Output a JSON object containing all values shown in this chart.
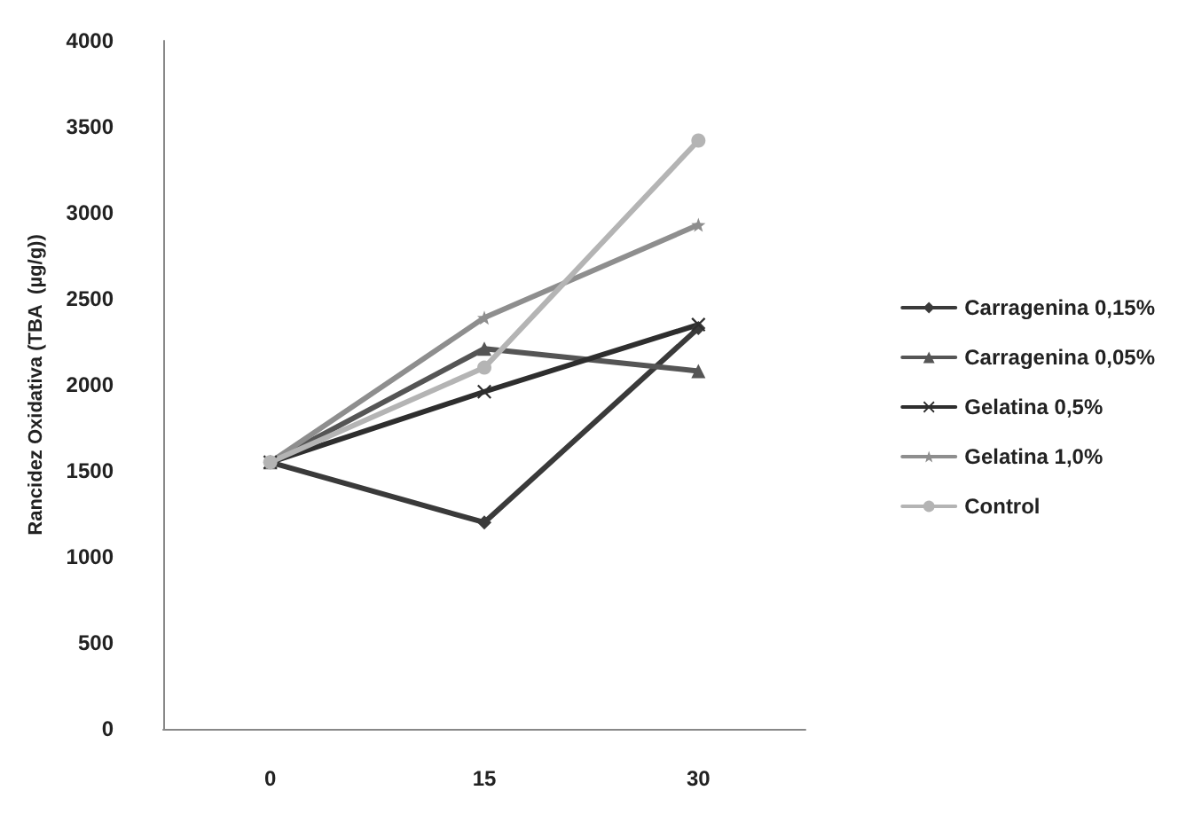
{
  "chart_data": {
    "type": "line",
    "ylabel": "Rancidez Oxidativa (TBA  (µg/g))",
    "categories": [
      "0",
      "15",
      "30"
    ],
    "series": [
      {
        "name": "Carragenina 0,15%",
        "color": "#3a3a3a",
        "marker": "diamond",
        "values": [
          1550,
          1200,
          2330
        ]
      },
      {
        "name": "Carragenina 0,05%",
        "color": "#555555",
        "marker": "triangle",
        "values": [
          1550,
          2210,
          2080
        ]
      },
      {
        "name": "Gelatina 0,5%",
        "color": "#2e2e2e",
        "marker": "cross",
        "values": [
          1550,
          1960,
          2350
        ]
      },
      {
        "name": "Gelatina 1,0%",
        "color": "#8e8e8e",
        "marker": "star",
        "values": [
          1550,
          2390,
          2930
        ]
      },
      {
        "name": "Control",
        "color": "#b4b4b4",
        "marker": "circle",
        "values": [
          1550,
          2100,
          3420
        ]
      }
    ],
    "ylim": [
      0,
      4000
    ],
    "yticks": [
      0,
      500,
      1000,
      1500,
      2000,
      2500,
      3000,
      3500,
      4000
    ],
    "grid": false,
    "legend": "right",
    "line_style": "solid"
  }
}
